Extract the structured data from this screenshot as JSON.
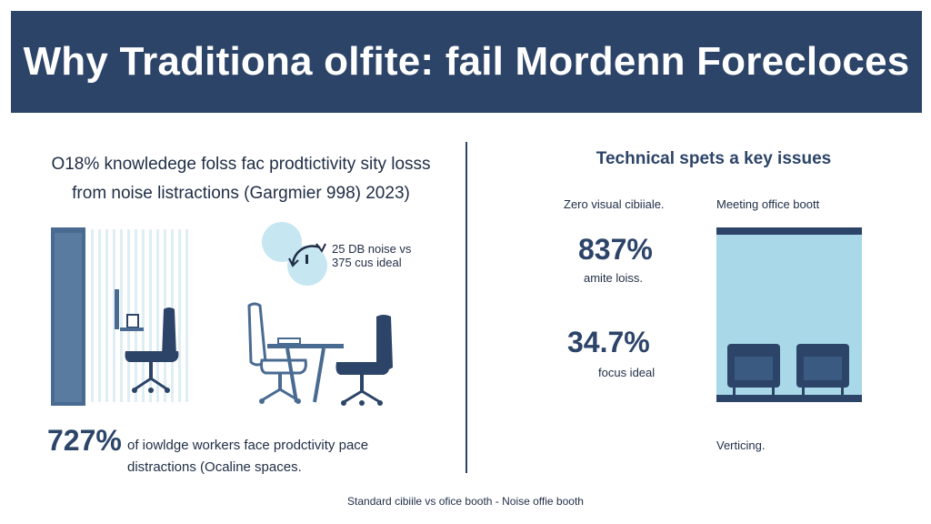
{
  "header": {
    "title": "Why Traditiona olfite: fail Mordenn Foreclo­ces"
  },
  "left": {
    "stat_line1": "O18% knowledege folss fac prodtictivity sity losss",
    "stat_line2": "from noise listractions (Gargmier 998) 2023)",
    "noise_line1": "25 DB noise vs",
    "noise_line2": "375 cus ideal",
    "big_number": "727%",
    "big_text_line1": "of iowldge workers face prodctivity pace",
    "big_text_line2": "distractions (Ocaline spaces."
  },
  "right": {
    "title": "Technical spets a key issues",
    "col1_label": "Zero visual cibiiale.",
    "col2_label": "Meeting office boott",
    "stat1_value": "837%",
    "stat1_label": "amite loiss.",
    "stat2_value": "34.7%",
    "stat2_label": "focus ideal",
    "booth_label": "Verticing."
  },
  "footer": {
    "caption": "Standard cibiile vs ofice booth - Noise offie booth"
  },
  "colors": {
    "navy": "#2c4468",
    "blue": "#4a6b91",
    "light_blue": "#a9d8e8",
    "pale_blue": "#c6e6f1"
  }
}
